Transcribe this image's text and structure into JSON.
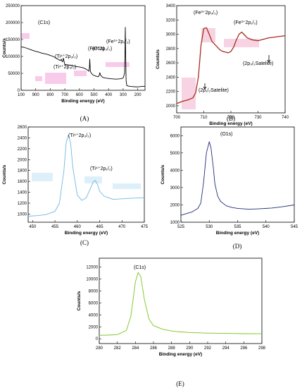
{
  "chart_data": [
    {
      "id": "A",
      "type": "line",
      "caption": "(A)",
      "xlabel": "Binding energy (eV)",
      "ylabel": "Counts/s",
      "xlim": [
        150,
        1000
      ],
      "ylim": [
        0,
        250000
      ],
      "x_reversed": true,
      "xticks": [
        200,
        300,
        400,
        500,
        600,
        700,
        800,
        900,
        100
      ],
      "yticks": [
        0,
        50000,
        100000,
        150000,
        200000,
        250000
      ],
      "grid": false,
      "color": "#000000",
      "fill_color": "#f4a0d8",
      "annotations": [
        "(C1s)",
        "(O1s)",
        "(Ti⁴⁺2p₃/₂)",
        "(Ti⁴⁺2p₃/₂)",
        "(Fe³⁺2p₁/₂)",
        "(Fe³⁺2p₃/₂)"
      ],
      "series": [
        {
          "x": [
            150,
            180,
            200,
            220,
            240,
            260,
            275,
            280,
            283,
            285,
            287,
            290,
            300,
            320,
            350,
            380,
            400,
            420,
            440,
            455,
            460,
            465,
            470,
            490,
            510,
            525,
            529,
            531,
            535,
            545,
            560,
            580,
            600,
            620,
            640,
            660,
            680,
            700,
            705,
            710,
            712,
            715,
            720,
            724,
            730,
            740,
            760,
            780,
            800,
            820,
            840,
            860,
            880,
            900,
            920,
            940,
            960,
            980,
            1000
          ],
          "y": [
            12000,
            11000,
            10000,
            10500,
            11000,
            12000,
            14000,
            30000,
            110000,
            186000,
            120000,
            50000,
            36000,
            34000,
            33000,
            34000,
            35000,
            36000,
            38000,
            45000,
            52000,
            44000,
            40000,
            42000,
            46000,
            55000,
            92000,
            70000,
            56000,
            60000,
            64000,
            67000,
            69000,
            70000,
            72000,
            74000,
            75000,
            76000,
            85000,
            95000,
            90000,
            84000,
            86000,
            92000,
            88000,
            90000,
            95000,
            100000,
            103000,
            106000,
            108000,
            110000,
            113000,
            115000,
            118000,
            121000,
            124000,
            127000,
            128000
          ]
        }
      ]
    },
    {
      "id": "B",
      "type": "line",
      "caption": "(B)",
      "xlabel": "Binding energy (eV)",
      "ylabel": "Counts/s",
      "xlim": [
        700,
        740
      ],
      "ylim": [
        1900,
        3400
      ],
      "xticks": [
        700,
        710,
        720,
        730,
        740
      ],
      "yticks": [
        2000,
        2200,
        2400,
        2600,
        2800,
        3000,
        3200,
        3400
      ],
      "grid": false,
      "color": "#a42d1e",
      "fill_color": "#f0a8c8",
      "annotations": [
        "(Fe³⁺2p₃/₂)",
        "(Fe³⁺2p₁/₂)",
        "(2p₁/₂Satelite)",
        "(2p₃/₂Satelite)"
      ],
      "series": [
        {
          "x": [
            700,
            702,
            704,
            706,
            707,
            708,
            709,
            710,
            711,
            712,
            713,
            714,
            715,
            716,
            717,
            718,
            719,
            720,
            721,
            722,
            723,
            724,
            725,
            726,
            728,
            730,
            732,
            734,
            736,
            738,
            740
          ],
          "y": [
            2030,
            2060,
            2080,
            2110,
            2180,
            2400,
            2850,
            3080,
            3090,
            3000,
            2900,
            2860,
            2820,
            2780,
            2760,
            2750,
            2740,
            2760,
            2820,
            2920,
            3000,
            3030,
            2990,
            2950,
            2920,
            2910,
            2930,
            2950,
            2960,
            2970,
            2980
          ]
        }
      ]
    },
    {
      "id": "C",
      "type": "line",
      "caption": "(C)",
      "xlabel": "Binding energy (eV)",
      "ylabel": "Counts/s",
      "xlim": [
        449,
        475
      ],
      "ylim": [
        850,
        2600
      ],
      "xticks": [
        450,
        455,
        460,
        465,
        470,
        475
      ],
      "yticks": [
        1000,
        1200,
        1400,
        1600,
        1800,
        2000,
        2200,
        2400,
        2600
      ],
      "grid": false,
      "color": "#6fb8e0",
      "annotations": [
        "(Ti⁴⁺2p₃/₂)",
        "(Ti⁴⁺2p₁/₂)"
      ],
      "series": [
        {
          "x": [
            449,
            451,
            453,
            455,
            456,
            457,
            457.5,
            458,
            458.5,
            459,
            460,
            461,
            462,
            463,
            463.5,
            464,
            464.5,
            465,
            466,
            467,
            468,
            470,
            472,
            475
          ],
          "y": [
            960,
            970,
            990,
            1050,
            1200,
            1800,
            2300,
            2450,
            2300,
            1850,
            1350,
            1250,
            1300,
            1480,
            1580,
            1620,
            1550,
            1420,
            1330,
            1300,
            1270,
            1280,
            1290,
            1300
          ]
        }
      ]
    },
    {
      "id": "D",
      "type": "line",
      "caption": "(D)",
      "xlabel": "Binding energy (eV)",
      "ylabel": "Counts/s",
      "xlim": [
        525,
        545
      ],
      "ylim": [
        1000,
        6500
      ],
      "xticks": [
        525,
        530,
        535,
        540,
        545
      ],
      "yticks": [
        1000,
        2000,
        3000,
        4000,
        5000,
        6000
      ],
      "grid": false,
      "color": "#1f2a7a",
      "annotations": [
        "(O1s)"
      ],
      "series": [
        {
          "x": [
            525,
            526,
            527,
            528,
            528.5,
            529,
            529.5,
            530,
            530.3,
            530.7,
            531,
            531.5,
            532,
            533,
            534,
            535,
            537,
            539,
            541,
            543,
            545
          ],
          "y": [
            1400,
            1500,
            1600,
            1800,
            2100,
            3300,
            5000,
            5650,
            5300,
            4200,
            3200,
            2500,
            2200,
            1950,
            1850,
            1800,
            1750,
            1780,
            1820,
            1900,
            2000
          ]
        }
      ]
    },
    {
      "id": "E",
      "type": "line",
      "caption": "(E)",
      "xlabel": "Binding energy (eV)",
      "ylabel": "Counts/s",
      "xlim": [
        280,
        298
      ],
      "ylim": [
        -800,
        13500
      ],
      "xticks": [
        280,
        282,
        284,
        286,
        288,
        290,
        292,
        294,
        296,
        298
      ],
      "yticks": [
        0,
        2000,
        4000,
        6000,
        8000,
        10000,
        12000
      ],
      "grid": false,
      "color": "#7ac31f",
      "annotations": [
        "(C1s)"
      ],
      "series": [
        {
          "x": [
            280,
            281,
            282,
            283,
            283.5,
            284,
            284.3,
            284.6,
            285,
            285.5,
            286,
            287,
            288,
            289,
            290,
            292,
            294,
            296,
            298
          ],
          "y": [
            600,
            620,
            700,
            1400,
            3800,
            9500,
            11100,
            10400,
            6500,
            3300,
            2200,
            1600,
            1300,
            1150,
            1050,
            950,
            900,
            860,
            840
          ]
        }
      ]
    }
  ]
}
